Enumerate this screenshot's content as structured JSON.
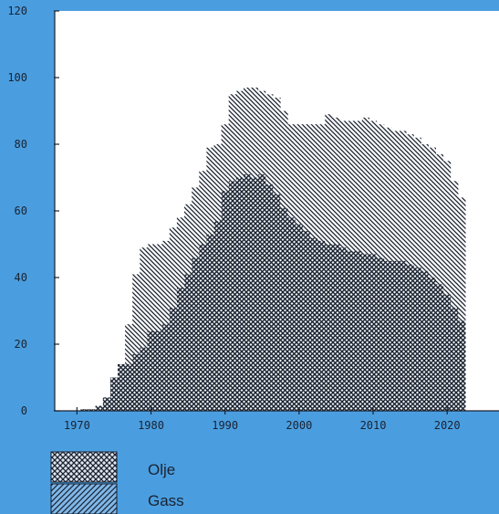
{
  "chart_data": {
    "type": "area",
    "stacked": true,
    "title": "",
    "xlabel": "",
    "ylabel": "",
    "xlim": [
      1967,
      2027
    ],
    "ylim": [
      0,
      120
    ],
    "x_ticks": [
      1970,
      1980,
      1990,
      2000,
      2010,
      2020
    ],
    "y_ticks": [
      0,
      20,
      40,
      60,
      80,
      100,
      120
    ],
    "grid": false,
    "legend_position": "bottom-left",
    "colors": {
      "background": "#4a9ee0",
      "plot_area": "#ffffff",
      "ink": "#1a2230"
    },
    "x": [
      1971,
      1972,
      1973,
      1974,
      1975,
      1976,
      1977,
      1978,
      1979,
      1980,
      1981,
      1982,
      1983,
      1984,
      1985,
      1986,
      1987,
      1988,
      1989,
      1990,
      1991,
      1992,
      1993,
      1994,
      1995,
      1996,
      1997,
      1998,
      1999,
      2000,
      2001,
      2002,
      2003,
      2004,
      2005,
      2006,
      2007,
      2008,
      2009,
      2010,
      2011,
      2012,
      2013,
      2014,
      2015,
      2016,
      2017,
      2018,
      2019,
      2020,
      2021,
      2022
    ],
    "series": [
      {
        "name": "Olje",
        "pattern": "crosshatch",
        "values": [
          0.5,
          0.5,
          1.5,
          4,
          10,
          14,
          14,
          17,
          19,
          24,
          24,
          26,
          31,
          37,
          41,
          46,
          50,
          53,
          57,
          66,
          69,
          70,
          71,
          70,
          71,
          68,
          65,
          61,
          58,
          56,
          54,
          52,
          51,
          50,
          50,
          49,
          48,
          48,
          47,
          47,
          46,
          45,
          45,
          45,
          44,
          43,
          42,
          40,
          38,
          35,
          31,
          27
        ]
      },
      {
        "name": "Gass",
        "pattern": "diagonal",
        "values": [
          0,
          0,
          0,
          0,
          0,
          0,
          12,
          24,
          30,
          26,
          26,
          25,
          24,
          21,
          21,
          21,
          22,
          26,
          23,
          20,
          26,
          26,
          26,
          27,
          25,
          27,
          29,
          29,
          28,
          30,
          32,
          34,
          35,
          39,
          38,
          38,
          39,
          39,
          41,
          40,
          40,
          40,
          39,
          39,
          39,
          39,
          38,
          39,
          39,
          40,
          38,
          37
        ]
      }
    ]
  },
  "legend": {
    "items": [
      {
        "label": "Olje",
        "pattern": "crosshatch"
      },
      {
        "label": "Gass",
        "pattern": "diagonal"
      }
    ]
  }
}
